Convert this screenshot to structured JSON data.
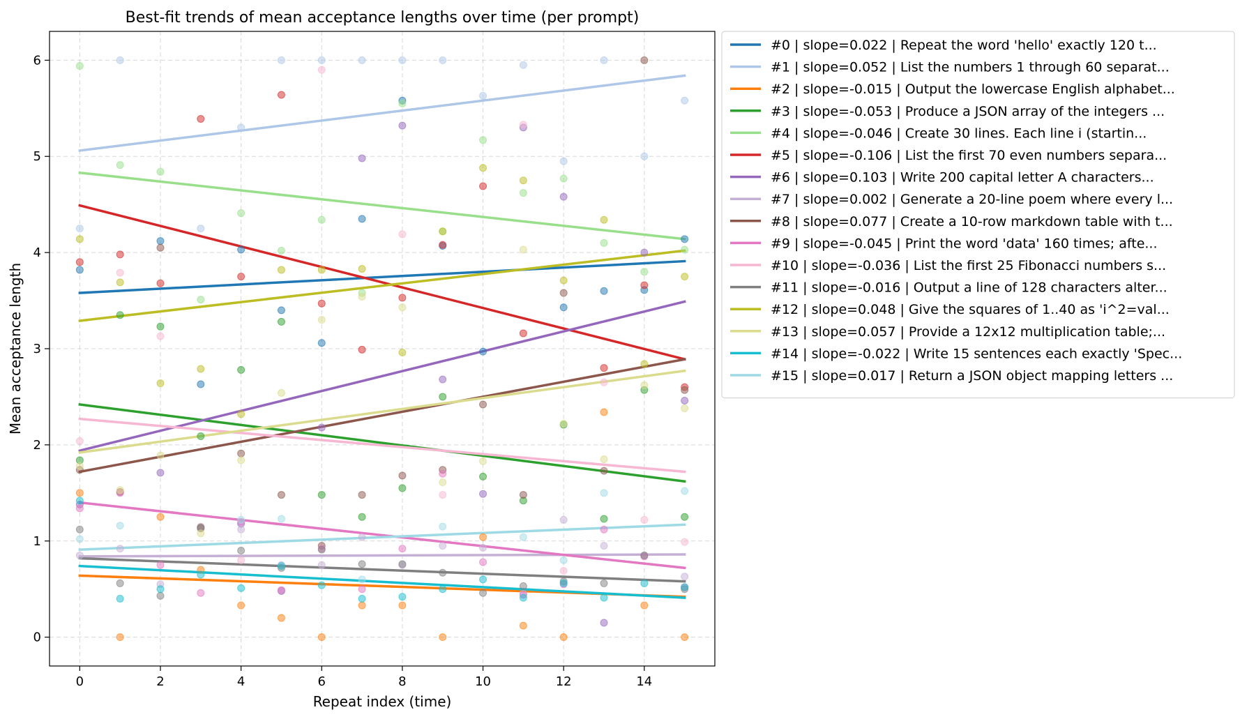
{
  "chart_data": {
    "type": "scatter",
    "title": "Best-fit trends of mean acceptance lengths over time (per prompt)",
    "xlabel": "Repeat index (time)",
    "ylabel": "Mean acceptance length",
    "xlim": [
      -0.75,
      15.75
    ],
    "ylim": [
      -0.3,
      6.3
    ],
    "xticks": [
      0,
      2,
      4,
      6,
      8,
      10,
      12,
      14
    ],
    "yticks": [
      0,
      1,
      2,
      3,
      4,
      5,
      6
    ],
    "grid": true,
    "legend_position": "outside-right",
    "x": [
      0,
      1,
      2,
      3,
      4,
      5,
      6,
      7,
      8,
      9,
      10,
      11,
      12,
      13,
      14,
      15
    ],
    "series": [
      {
        "name": "#0 | slope=0.022 | Repeat the word 'hello' exactly 120 t...",
        "color": "#1f77b4",
        "slope": 0.022,
        "fit": [
          3.58,
          3.91
        ],
        "values": [
          3.82,
          null,
          4.12,
          2.63,
          4.03,
          3.4,
          3.06,
          4.35,
          5.58,
          4.07,
          2.97,
          null,
          3.43,
          3.6,
          3.61,
          4.14
        ]
      },
      {
        "name": "#1 | slope=0.052 | List the numbers 1 through 60 separat...",
        "color": "#aec7e8",
        "slope": 0.052,
        "fit": [
          5.06,
          5.84
        ],
        "values": [
          4.25,
          6.0,
          null,
          4.25,
          5.3,
          6.0,
          6.0,
          6.0,
          6.0,
          6.0,
          5.63,
          5.95,
          4.95,
          6.0,
          5.0,
          5.58
        ]
      },
      {
        "name": "#2 | slope=-0.015 | Output the lowercase English alphabet...",
        "color": "#ff7f0e",
        "slope": -0.015,
        "fit": [
          0.64,
          0.42
        ],
        "values": [
          1.5,
          0.0,
          1.25,
          0.7,
          0.33,
          0.2,
          0.0,
          0.33,
          0.33,
          0.0,
          1.04,
          0.12,
          0.0,
          2.34,
          0.33,
          0.0
        ]
      },
      {
        "name": "#3 | slope=-0.053 | Produce a JSON array of the integers ...",
        "color": "#2ca02c",
        "slope": -0.053,
        "fit": [
          2.42,
          1.62
        ],
        "values": [
          1.84,
          3.35,
          3.23,
          2.09,
          2.78,
          3.28,
          1.48,
          1.25,
          1.55,
          2.5,
          1.67,
          1.42,
          2.21,
          1.23,
          2.57,
          1.25
        ]
      },
      {
        "name": "#4 | slope=-0.046 | Create 30 lines. Each line i (startin...",
        "color": "#98df8a",
        "slope": -0.046,
        "fit": [
          4.83,
          4.14
        ],
        "values": [
          5.94,
          4.91,
          4.84,
          3.51,
          4.41,
          4.02,
          4.34,
          3.58,
          5.55,
          4.22,
          5.17,
          4.62,
          4.77,
          4.1,
          3.8,
          4.03
        ]
      },
      {
        "name": "#5 | slope=-0.106 | List the first 70 even numbers separa...",
        "color": "#d62728",
        "slope": -0.106,
        "fit": [
          4.49,
          2.89
        ],
        "values": [
          3.9,
          3.98,
          3.68,
          5.39,
          3.75,
          5.64,
          3.47,
          2.99,
          3.53,
          4.08,
          4.69,
          3.16,
          null,
          2.8,
          3.66,
          2.6
        ]
      },
      {
        "name": "#6 | slope=0.103 | Write 200 capital letter A characters...",
        "color": "#9467bd",
        "slope": 0.103,
        "fit": [
          1.94,
          3.49
        ],
        "values": [
          1.38,
          null,
          1.71,
          null,
          1.18,
          0.48,
          2.18,
          4.98,
          5.32,
          2.68,
          1.49,
          5.3,
          4.58,
          0.15,
          4.0,
          2.46
        ]
      },
      {
        "name": "#7 | slope=0.002 | Generate a 20-line poem where every l...",
        "color": "#c5b0d5",
        "slope": 0.002,
        "fit": [
          0.84,
          0.86
        ],
        "values": [
          0.85,
          0.92,
          0.55,
          1.15,
          1.12,
          0.75,
          0.75,
          1.04,
          0.75,
          0.95,
          0.93,
          0.45,
          1.22,
          0.95,
          0.85,
          0.63
        ]
      },
      {
        "name": "#8 | slope=0.077 | Create a 10-row markdown table with t...",
        "color": "#8c564b",
        "slope": 0.077,
        "fit": [
          1.72,
          2.89
        ],
        "values": [
          1.74,
          1.51,
          4.05,
          1.14,
          1.91,
          1.48,
          0.95,
          1.48,
          1.68,
          1.74,
          2.42,
          1.48,
          3.58,
          1.73,
          6.0,
          2.57
        ]
      },
      {
        "name": "#9 | slope=-0.045 | Print the word 'data' 160 times; afte...",
        "color": "#e377c2",
        "slope": -0.045,
        "fit": [
          1.4,
          0.72
        ],
        "values": [
          1.34,
          1.5,
          0.75,
          0.46,
          1.2,
          0.49,
          0.92,
          0.5,
          0.92,
          1.7,
          0.78,
          0.44,
          0.55,
          1.12,
          0.84,
          0.52
        ]
      },
      {
        "name": "#10 | slope=-0.036 | List the first 25 Fibonacci numbers s...",
        "color": "#f7b6d2",
        "slope": -0.036,
        "fit": [
          2.27,
          1.72
        ],
        "values": [
          2.04,
          3.79,
          3.13,
          null,
          0.8,
          null,
          5.9,
          null,
          4.19,
          1.48,
          null,
          5.33,
          0.69,
          2.65,
          1.22,
          0.99
        ]
      },
      {
        "name": "#11 | slope=-0.016 | Output a line of 128 characters alter...",
        "color": "#7f7f7f",
        "slope": -0.016,
        "fit": [
          0.82,
          0.58
        ],
        "values": [
          1.12,
          0.56,
          0.43,
          1.13,
          0.9,
          0.72,
          0.91,
          0.76,
          0.76,
          0.67,
          0.46,
          0.53,
          0.58,
          0.56,
          0.85,
          0.5
        ]
      },
      {
        "name": "#12 | slope=0.048 | Give the squares of 1..40 as 'i^2=val...",
        "color": "#bcbd22",
        "slope": 0.048,
        "fit": [
          3.29,
          4.02
        ],
        "values": [
          4.14,
          3.69,
          2.64,
          2.79,
          2.32,
          3.82,
          3.82,
          3.83,
          2.96,
          4.22,
          4.88,
          4.75,
          3.71,
          4.34,
          2.84,
          3.75
        ]
      },
      {
        "name": "#13 | slope=0.057 | Provide a 12x12 multiplication table;...",
        "color": "#dbdb8d",
        "slope": 0.057,
        "fit": [
          1.92,
          2.77
        ],
        "values": [
          1.78,
          1.53,
          1.89,
          1.08,
          1.84,
          2.54,
          3.3,
          3.54,
          3.43,
          1.61,
          1.83,
          4.03,
          2.22,
          1.85,
          2.62,
          2.38
        ]
      },
      {
        "name": "#14 | slope=-0.022 | Write 15 sentences each exactly 'Spec...",
        "color": "#17becf",
        "slope": -0.022,
        "fit": [
          0.74,
          0.41
        ],
        "values": [
          1.42,
          0.4,
          0.5,
          0.65,
          0.51,
          0.74,
          0.54,
          0.4,
          0.42,
          0.5,
          0.6,
          0.41,
          0.56,
          0.41,
          0.56,
          0.52
        ]
      },
      {
        "name": "#15 | slope=0.017 | Return a JSON object mapping letters ...",
        "color": "#9edae5",
        "slope": 0.017,
        "fit": [
          0.91,
          1.17
        ],
        "values": [
          1.02,
          1.16,
          null,
          null,
          1.22,
          1.23,
          null,
          0.6,
          null,
          1.15,
          null,
          1.04,
          0.8,
          1.5,
          null,
          1.52
        ]
      }
    ]
  }
}
